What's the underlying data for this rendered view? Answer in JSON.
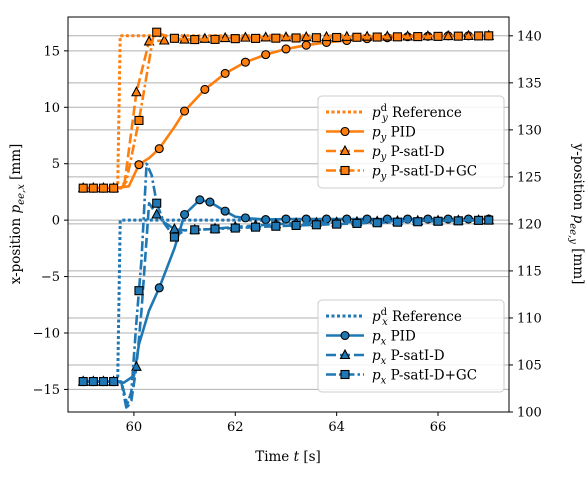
{
  "chart_data": {
    "type": "line",
    "xlabel": "Time t [s]",
    "ylabel_left": "x-position p_ee,x [mm]",
    "ylabel_right": "y-position p_ee,y [mm]",
    "xlim": [
      58.7,
      67.4
    ],
    "ylim_left": [
      -17,
      18
    ],
    "ylim_right": [
      100,
      142
    ],
    "grid": "horizontal gridlines at left and right axis ticks",
    "x_ticks": [
      "60",
      "62",
      "64",
      "66"
    ],
    "x_tick_values": [
      60,
      62,
      64,
      66
    ],
    "y_left_ticks": [
      "15",
      "10",
      "5",
      "0",
      "−5",
      "−10",
      "−15"
    ],
    "y_left_tick_values": [
      15,
      10,
      5,
      0,
      -5,
      -10,
      -15
    ],
    "y_right_ticks": [
      "140",
      "135",
      "130",
      "125",
      "120",
      "115",
      "110",
      "105",
      "100"
    ],
    "y_right_tick_values": [
      140,
      135,
      130,
      125,
      120,
      115,
      110,
      105,
      100
    ],
    "colors": {
      "orange": "#ff7f0e",
      "blue": "#1f77b4"
    },
    "legend_y": {
      "placement": "center-right",
      "labels": [
        "p_y^d Reference",
        "p_y PID",
        "p_y P-satI-D",
        "p_y P-satI-D+GC"
      ]
    },
    "legend_x": {
      "placement": "lower-right",
      "labels": [
        "p_x^d Reference",
        "p_x PID",
        "p_x P-satI-D",
        "p_x P-satI-D+GC"
      ]
    },
    "series": [
      {
        "name": "p_y^d Reference",
        "axis": "right",
        "color": "#ff7f0e",
        "style": "dotted",
        "marker": "none",
        "x": [
          59.0,
          59.68,
          59.73,
          67.0
        ],
        "y": [
          123.8,
          123.8,
          140.0,
          140.0
        ]
      },
      {
        "name": "p_y PID",
        "axis": "right",
        "color": "#ff7f0e",
        "style": "solid",
        "marker": "circle",
        "x": [
          59.0,
          59.2,
          59.4,
          59.6,
          59.9,
          60.1,
          60.3,
          60.5,
          60.8,
          61.0,
          61.4,
          61.8,
          62.2,
          62.6,
          63.0,
          63.4,
          63.8,
          64.2,
          64.6,
          65.0,
          65.4,
          65.8,
          66.2,
          66.6,
          67.0
        ],
        "y": [
          123.8,
          123.8,
          123.8,
          123.8,
          124.0,
          126.3,
          127.0,
          128.0,
          130.3,
          132.0,
          134.3,
          136.0,
          137.2,
          138.0,
          138.6,
          139.0,
          139.3,
          139.5,
          139.7,
          139.8,
          139.9,
          139.95,
          140.0,
          140.0,
          140.0
        ],
        "markers_x": [
          59.0,
          59.2,
          59.4,
          59.6,
          60.1,
          60.5,
          61.0,
          61.4,
          61.8,
          62.2,
          62.6,
          63.0,
          63.4,
          63.8,
          64.2,
          64.6,
          65.0,
          65.4,
          65.8,
          66.2,
          66.6,
          67.0
        ]
      },
      {
        "name": "p_y P-satI-D",
        "axis": "right",
        "color": "#ff7f0e",
        "style": "dashed",
        "marker": "triangle",
        "x": [
          59.0,
          59.75,
          59.82,
          60.05,
          60.3,
          60.6,
          61.0,
          61.5,
          62.0,
          67.0
        ],
        "y": [
          123.8,
          123.8,
          124.5,
          134.0,
          139.4,
          139.5,
          139.6,
          139.7,
          139.8,
          140.0
        ],
        "markers_x": [
          59.0,
          59.2,
          59.4,
          59.6,
          60.05,
          60.3,
          60.6,
          61.0,
          61.4,
          61.8,
          62.2,
          62.6,
          63.0,
          63.4,
          63.8,
          64.2,
          64.6,
          65.0,
          65.4,
          65.8,
          66.2,
          66.6,
          67.0
        ]
      },
      {
        "name": "p_y P-satI-D+GC",
        "axis": "right",
        "color": "#ff7f0e",
        "style": "dashdot",
        "marker": "square",
        "x": [
          59.0,
          59.75,
          59.85,
          60.1,
          60.4,
          60.7,
          61.0,
          61.5,
          62.0,
          67.0
        ],
        "y": [
          123.8,
          123.8,
          124.5,
          131.0,
          140.5,
          139.8,
          139.6,
          139.6,
          139.7,
          140.0
        ],
        "markers_x": [
          59.0,
          59.2,
          59.4,
          59.6,
          60.1,
          60.45,
          60.8,
          61.2,
          61.6,
          62.0,
          62.4,
          62.8,
          63.2,
          63.6,
          64.0,
          64.4,
          64.8,
          65.2,
          65.6,
          66.0,
          66.4,
          66.8,
          67.0
        ]
      },
      {
        "name": "p_x^d Reference",
        "axis": "left",
        "color": "#1f77b4",
        "style": "dotted",
        "marker": "none",
        "x": [
          59.0,
          59.68,
          59.73,
          67.0
        ],
        "y": [
          -14.3,
          -14.3,
          0.0,
          0.0
        ]
      },
      {
        "name": "p_x PID",
        "axis": "left",
        "color": "#1f77b4",
        "style": "solid",
        "marker": "circle",
        "x": [
          59.0,
          59.2,
          59.4,
          59.6,
          59.8,
          60.0,
          60.1,
          60.3,
          60.5,
          60.8,
          61.0,
          61.3,
          61.5,
          61.8,
          62.0,
          62.3,
          62.6,
          63.0,
          63.5,
          64.0,
          65.0,
          66.0,
          67.0
        ],
        "y": [
          -14.3,
          -14.3,
          -14.3,
          -14.3,
          -14.4,
          -13.8,
          -11.0,
          -8.0,
          -6.0,
          -2.5,
          0.5,
          1.8,
          1.6,
          0.8,
          0.3,
          0.15,
          0.05,
          0.1,
          0.1,
          0.1,
          0.1,
          0.1,
          0.1
        ],
        "markers_x": [
          59.0,
          59.2,
          59.4,
          59.6,
          60.5,
          61.0,
          61.3,
          61.5,
          61.8,
          62.2,
          62.6,
          63.0,
          63.4,
          63.8,
          64.2,
          64.6,
          65.0,
          65.4,
          65.8,
          66.2,
          66.6,
          67.0
        ]
      },
      {
        "name": "p_x P-satI-D",
        "axis": "left",
        "color": "#1f77b4",
        "style": "dashed",
        "marker": "triangle",
        "x": [
          59.0,
          59.75,
          59.88,
          59.95,
          60.05,
          60.15,
          60.3,
          60.45,
          60.6,
          60.8,
          61.0,
          61.5,
          62.0,
          63.0,
          65.0,
          67.0
        ],
        "y": [
          -14.3,
          -14.3,
          -16.5,
          -16.0,
          -13.0,
          -8.0,
          1.5,
          0.5,
          -0.2,
          -0.8,
          -0.9,
          -0.8,
          -0.6,
          -0.3,
          -0.1,
          0.0
        ],
        "markers_x": [
          59.0,
          59.2,
          59.4,
          59.6,
          60.05,
          60.45,
          60.8,
          61.2,
          61.6,
          62.0,
          62.4,
          62.8,
          63.2,
          63.6,
          64.0,
          64.4,
          64.8,
          65.2,
          65.6,
          66.0,
          66.4,
          66.8,
          67.0
        ]
      },
      {
        "name": "p_x P-satI-D+GC",
        "axis": "left",
        "color": "#1f77b4",
        "style": "dashdot",
        "marker": "square",
        "x": [
          59.0,
          59.75,
          59.85,
          59.95,
          60.05,
          60.15,
          60.25,
          60.35,
          60.45,
          60.6,
          60.8,
          61.0,
          61.5,
          62.0,
          63.0,
          65.0,
          67.0
        ],
        "y": [
          -14.3,
          -14.3,
          -16.6,
          -15.2,
          -9.0,
          -3.5,
          5.0,
          4.0,
          1.5,
          -0.3,
          -1.5,
          -0.9,
          -0.8,
          -0.7,
          -0.5,
          -0.2,
          0.0
        ],
        "markers_x": [
          59.0,
          59.2,
          59.4,
          59.6,
          60.1,
          60.45,
          60.8,
          61.2,
          61.6,
          62.0,
          62.4,
          62.8,
          63.2,
          63.6,
          64.0,
          64.4,
          64.8,
          65.2,
          65.6,
          66.0,
          66.4,
          66.8,
          67.0
        ]
      }
    ]
  }
}
